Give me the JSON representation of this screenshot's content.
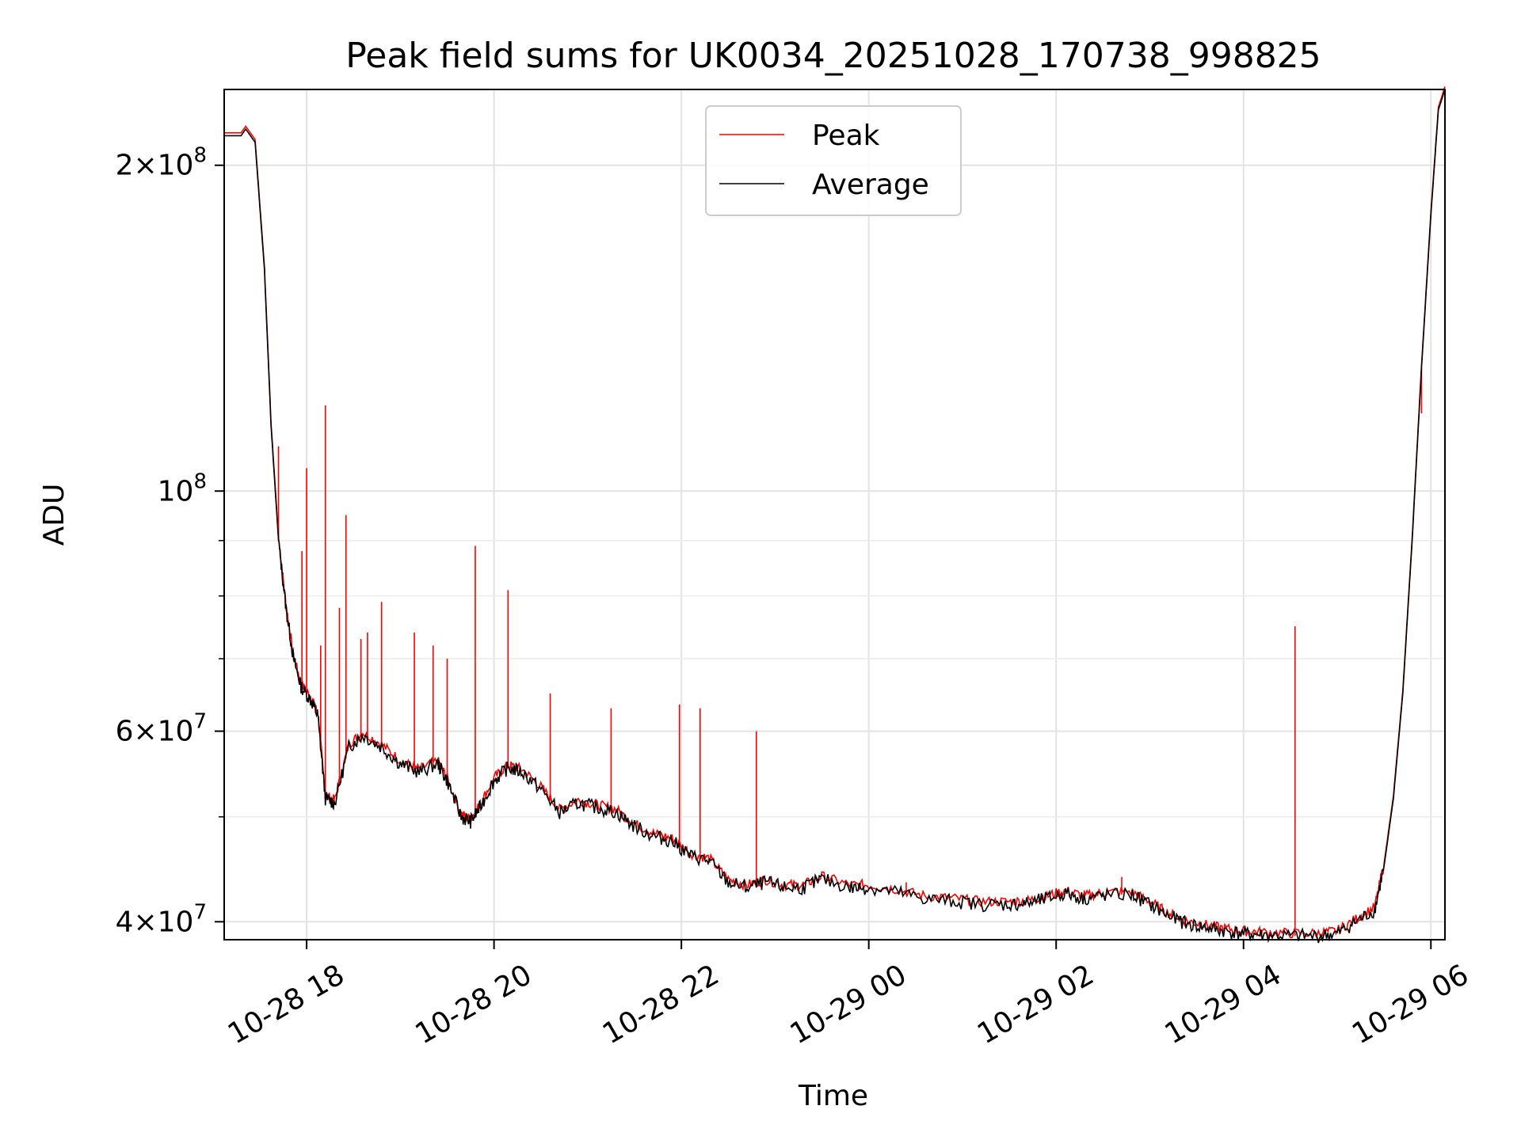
{
  "chart_data": {
    "type": "line",
    "title": "Peak field sums for UK0034_20251028_170738_998825",
    "xlabel": "Time",
    "ylabel": "ADU",
    "yscale": "log",
    "xlim_hours": [
      17.12,
      30.15
    ],
    "ylim": [
      38500000,
      235000000
    ],
    "grid": true,
    "legend_position": "top-center",
    "x_unit": "hours since 2025-10-28 00:00",
    "x_ticks": [
      {
        "value": 18,
        "label": "10-28 18"
      },
      {
        "value": 20,
        "label": "10-28 20"
      },
      {
        "value": 22,
        "label": "10-28 22"
      },
      {
        "value": 24,
        "label": "10-29 00"
      },
      {
        "value": 26,
        "label": "10-29 02"
      },
      {
        "value": 28,
        "label": "10-29 04"
      },
      {
        "value": 30,
        "label": "10-29 06"
      }
    ],
    "y_major_ticks": [
      {
        "value": 40000000,
        "mantissa": "4",
        "exponent": "7"
      },
      {
        "value": 60000000,
        "mantissa": "6",
        "exponent": "7"
      },
      {
        "value": 100000000,
        "mantissa": "",
        "exponent": "8"
      },
      {
        "value": 200000000,
        "mantissa": "2",
        "exponent": "8"
      }
    ],
    "y_minor_ticks": [
      50000000,
      70000000,
      80000000,
      90000000
    ],
    "tick_parts": {
      "base": "10",
      "times": "×"
    },
    "series": [
      {
        "name": "Peak",
        "color": "#ff0000",
        "spikes": [
          [
            17.7,
            110000000
          ],
          [
            17.95,
            88000000
          ],
          [
            18.0,
            105000000
          ],
          [
            18.15,
            72000000
          ],
          [
            18.2,
            120000000
          ],
          [
            18.35,
            78000000
          ],
          [
            18.42,
            95000000
          ],
          [
            18.58,
            73000000
          ],
          [
            18.65,
            74000000
          ],
          [
            18.8,
            79000000
          ],
          [
            19.15,
            74000000
          ],
          [
            19.35,
            72000000
          ],
          [
            19.5,
            70000000
          ],
          [
            19.8,
            89000000
          ],
          [
            20.15,
            81000000
          ],
          [
            20.6,
            65000000
          ],
          [
            21.25,
            63000000
          ],
          [
            21.98,
            63500000
          ],
          [
            22.2,
            63000000
          ],
          [
            22.8,
            60000000
          ],
          [
            24.4,
            43500000
          ],
          [
            26.7,
            44000000
          ],
          [
            28.55,
            75000000
          ],
          [
            29.9,
            118000000
          ]
        ]
      },
      {
        "name": "Average",
        "color": "#000000",
        "x": [
          17.12,
          17.3,
          17.35,
          17.45,
          17.55,
          17.62,
          17.7,
          17.78,
          17.86,
          17.94,
          18.05,
          18.12,
          18.2,
          18.3,
          18.45,
          18.6,
          18.8,
          19.0,
          19.2,
          19.4,
          19.5,
          19.65,
          19.75,
          19.85,
          20.0,
          20.15,
          20.3,
          20.5,
          20.7,
          20.9,
          21.1,
          21.3,
          21.5,
          21.7,
          21.9,
          22.1,
          22.3,
          22.5,
          22.7,
          22.9,
          23.1,
          23.3,
          23.5,
          23.8,
          24.0,
          24.3,
          24.6,
          24.9,
          25.2,
          25.5,
          25.7,
          25.9,
          26.1,
          26.3,
          26.5,
          26.8,
          27.0,
          27.2,
          27.4,
          27.6,
          27.8,
          28.0,
          28.2,
          28.5,
          28.8,
          29.0,
          29.2,
          29.4,
          29.5,
          29.6,
          29.7,
          29.8,
          29.9,
          30.0,
          30.08,
          30.15
        ],
        "y": [
          213000000,
          213000000,
          216000000,
          210000000,
          160000000,
          115000000,
          90000000,
          78000000,
          70000000,
          66000000,
          64000000,
          62000000,
          52000000,
          51500000,
          58000000,
          59500000,
          58000000,
          56000000,
          55000000,
          56000000,
          54000000,
          50000000,
          49500000,
          51000000,
          54000000,
          55500000,
          55000000,
          53000000,
          50500000,
          51500000,
          51000000,
          50500000,
          49000000,
          48000000,
          47500000,
          46000000,
          45500000,
          43500000,
          43000000,
          43500000,
          43000000,
          43000000,
          43800000,
          43000000,
          43000000,
          42600000,
          42000000,
          41800000,
          41500000,
          41500000,
          41600000,
          42000000,
          42500000,
          42000000,
          42300000,
          42400000,
          41500000,
          40500000,
          39800000,
          39500000,
          39200000,
          39000000,
          38900000,
          38800000,
          38800000,
          39000000,
          40000000,
          41000000,
          45000000,
          52000000,
          65000000,
          90000000,
          130000000,
          180000000,
          225000000,
          235000000
        ]
      }
    ]
  }
}
